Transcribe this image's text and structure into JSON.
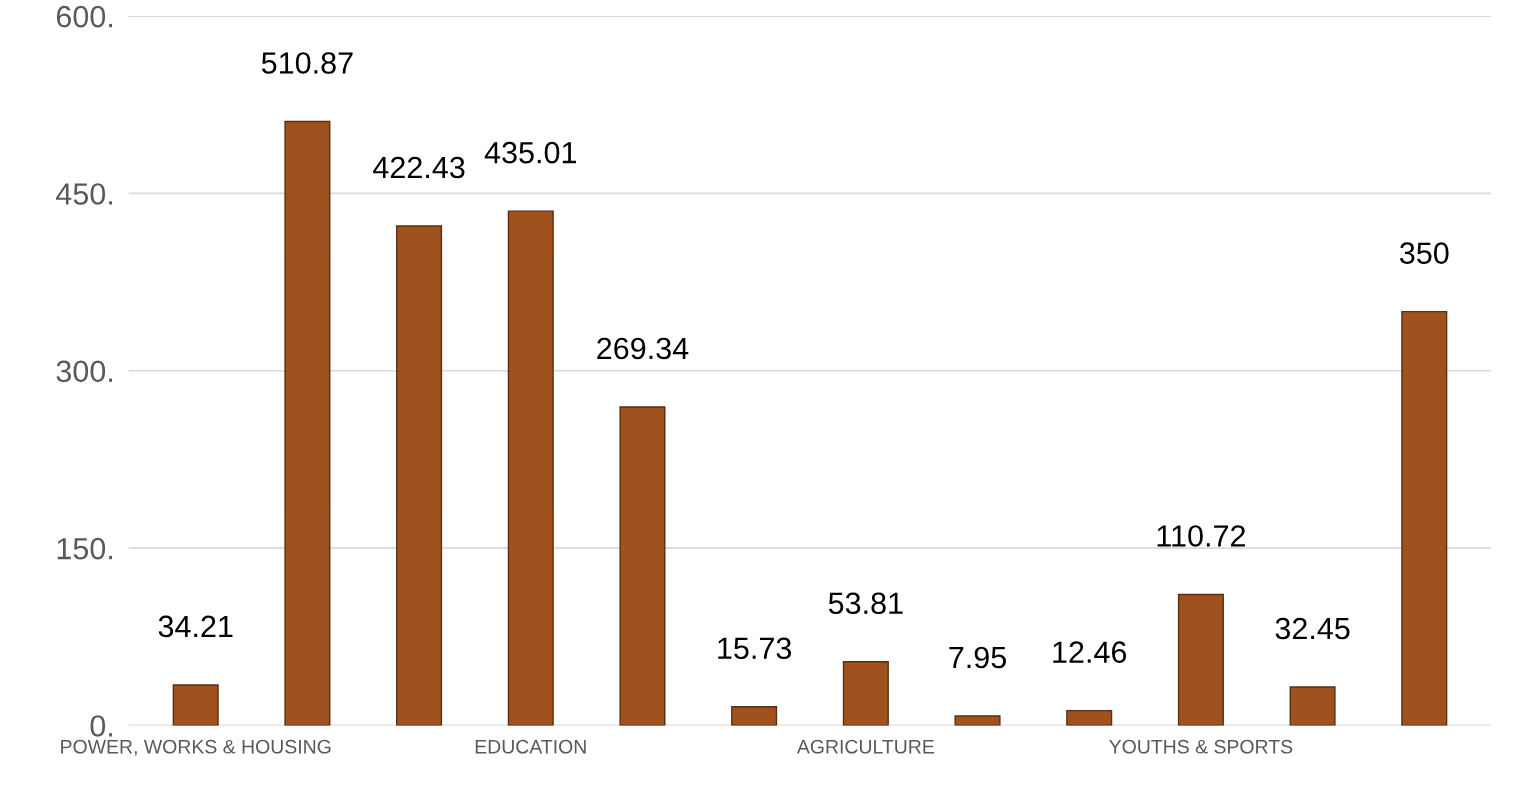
{
  "chart_data": {
    "type": "bar",
    "categories": [
      "POWER, WORKS & HOUSING",
      null,
      null,
      "EDUCATION",
      null,
      null,
      "AGRICULTURE",
      null,
      null,
      "YOUTHS & SPORTS",
      null,
      null
    ],
    "values": [
      34.21,
      510.87,
      422.43,
      435.01,
      269.34,
      15.73,
      53.81,
      7.95,
      12.46,
      110.72,
      32.45,
      350
    ],
    "color": "#a0521e",
    "ylim": [
      0,
      600
    ],
    "yticks": [
      {
        "value": 0,
        "label": "0."
      },
      {
        "value": 150,
        "label": "150."
      },
      {
        "value": 300,
        "label": "300."
      },
      {
        "value": 450,
        "label": "450."
      },
      {
        "value": 600,
        "label": "600."
      }
    ],
    "grid": "y",
    "data_labels": true
  }
}
